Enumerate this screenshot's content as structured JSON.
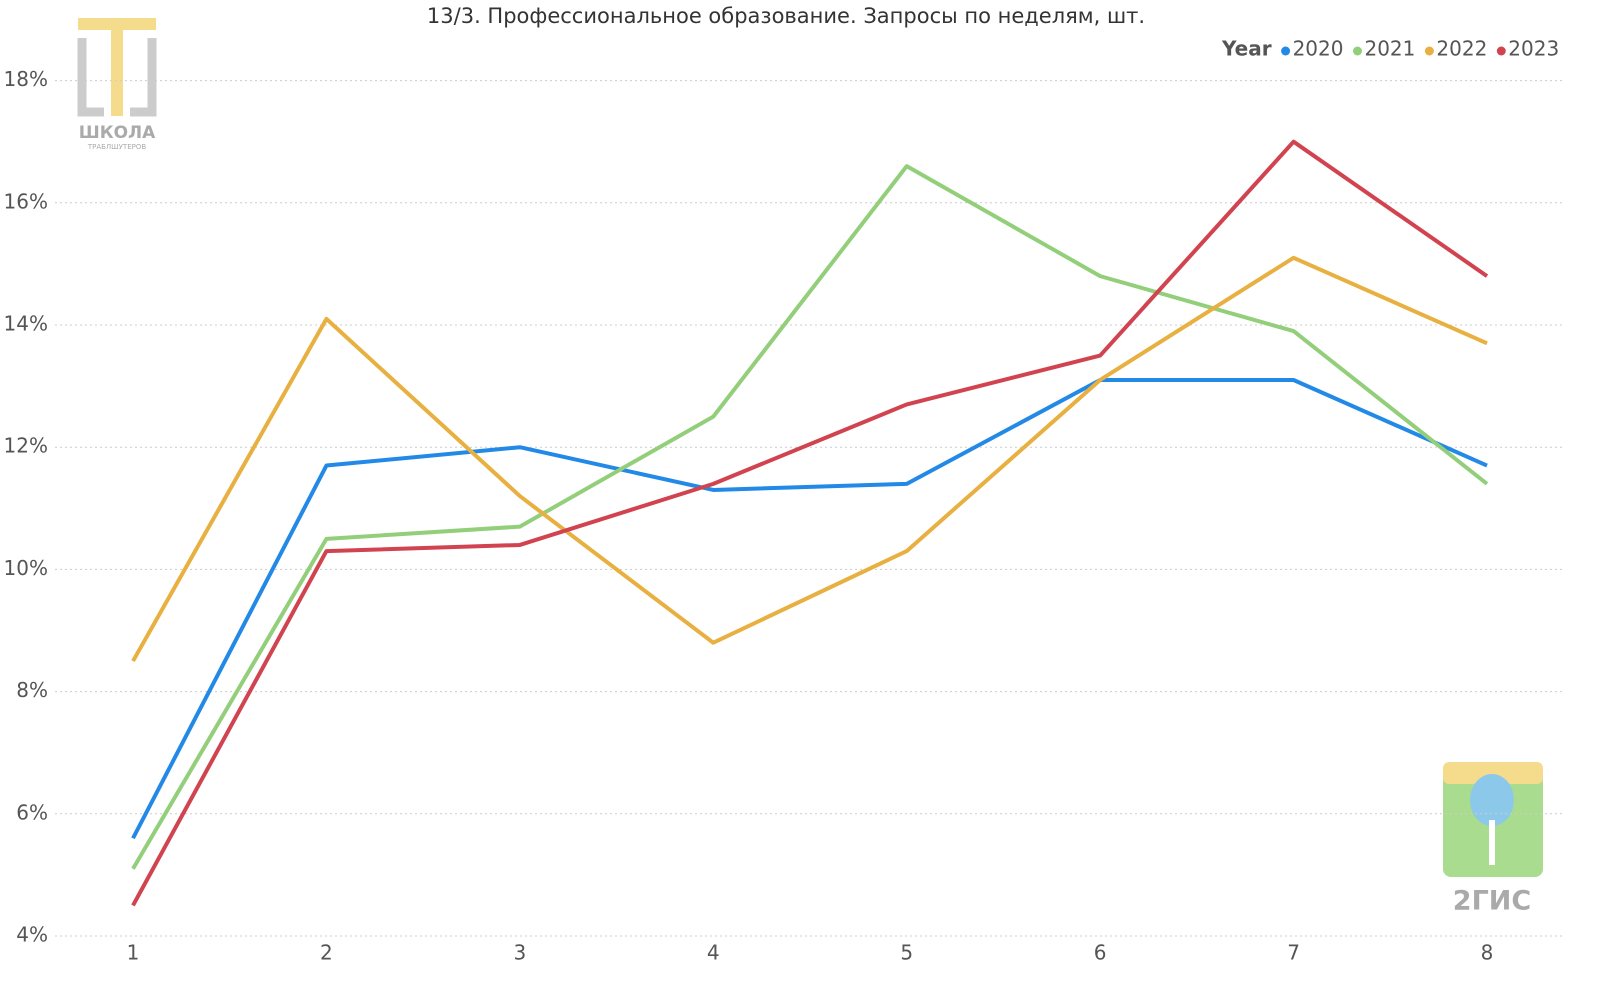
{
  "chart_data": {
    "type": "line",
    "title": "13/3. Профессиональное образование. Запросы по неделям, шт.",
    "categories": [
      "1",
      "2",
      "3",
      "4",
      "5",
      "6",
      "7",
      "8"
    ],
    "legend_title": "Year",
    "legend_position": "top-right",
    "series": [
      {
        "name": "2020",
        "color": "#2389e6",
        "values": [
          5.6,
          11.7,
          12.0,
          11.3,
          11.4,
          13.1,
          13.1,
          11.7
        ]
      },
      {
        "name": "2021",
        "color": "#93cf7a",
        "values": [
          5.1,
          10.5,
          10.7,
          12.5,
          16.6,
          14.8,
          13.9,
          11.4
        ]
      },
      {
        "name": "2022",
        "color": "#e8b040",
        "values": [
          8.5,
          14.1,
          11.2,
          8.8,
          10.3,
          13.1,
          15.1,
          13.7
        ]
      },
      {
        "name": "2023",
        "color": "#d1434f",
        "values": [
          4.5,
          10.3,
          10.4,
          11.4,
          12.7,
          13.5,
          17.0,
          14.8
        ]
      }
    ],
    "ylim": [
      4,
      19
    ],
    "yticks": [
      {
        "value": 4,
        "label": "4%"
      },
      {
        "value": 6,
        "label": "6%"
      },
      {
        "value": 8,
        "label": "8%"
      },
      {
        "value": 10,
        "label": "10%"
      },
      {
        "value": 12,
        "label": "12%"
      },
      {
        "value": 14,
        "label": "14%"
      },
      {
        "value": 16,
        "label": "16%"
      },
      {
        "value": 18,
        "label": "18%"
      }
    ],
    "grid": true,
    "annotations": [
      "ШКОЛА",
      "ТРАБЛШУТЕРОВ",
      "2ГИС"
    ]
  }
}
